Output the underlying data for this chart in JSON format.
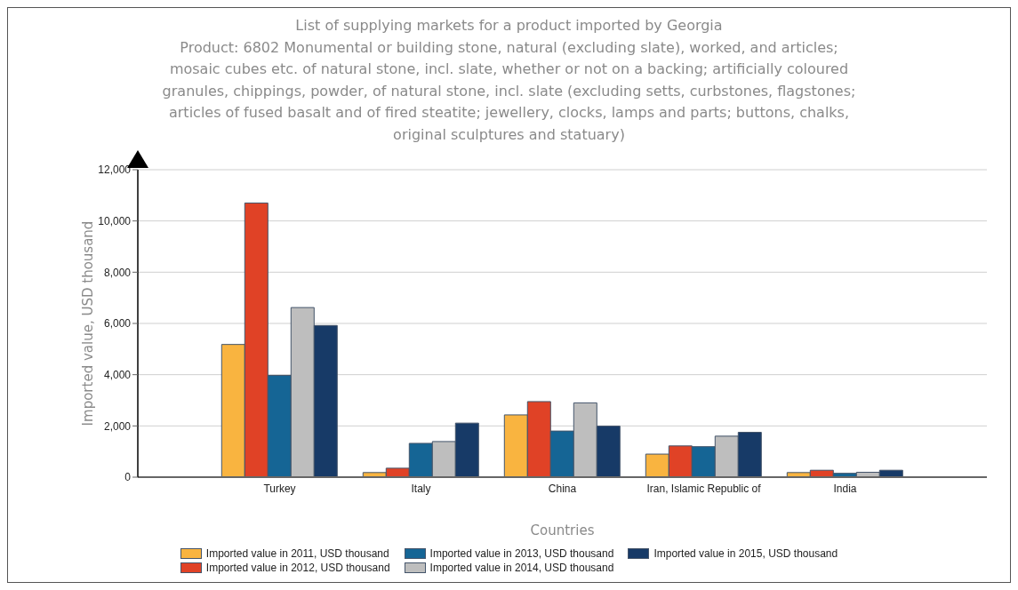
{
  "chart_data": {
    "type": "bar",
    "title": "List of supplying markets for a product imported by Georgia",
    "subtitle": "Product: 6802 Monumental or building stone, natural (excluding slate), worked, and articles; mosaic cubes etc. of natural stone, incl. slate, whether or not on a backing; artificially coloured granules, chippings, powder, of natural stone, incl. slate (excluding setts, curbstones, flagstones; articles of fused basalt and of fired steatite; jewellery, clocks, lamps and parts; buttons, chalks, original sculptures and statuary)",
    "xlabel": "Countries",
    "ylabel": "Imported value, USD thousand",
    "categories": [
      "Turkey",
      "Italy",
      "China",
      "Iran, Islamic Republic of",
      "India"
    ],
    "series": [
      {
        "name": "Imported value in 2011, USD thousand",
        "color": "#f9b440",
        "values": [
          5180,
          180,
          2430,
          900,
          180
        ]
      },
      {
        "name": "Imported value in 2012, USD thousand",
        "color": "#e04226",
        "values": [
          10700,
          350,
          2950,
          1220,
          270
        ]
      },
      {
        "name": "Imported value in 2013, USD thousand",
        "color": "#156595",
        "values": [
          3970,
          1320,
          1800,
          1190,
          150
        ]
      },
      {
        "name": "Imported value in 2014, USD thousand",
        "color": "#bebebe",
        "values": [
          6620,
          1390,
          2900,
          1600,
          190
        ]
      },
      {
        "name": "Imported value in 2015, USD thousand",
        "color": "#173a67",
        "values": [
          5920,
          2110,
          1990,
          1750,
          270
        ]
      }
    ],
    "ylim": [
      0,
      12000
    ],
    "yticks": [
      0,
      {
        "value": 2000,
        "label": "2,000"
      },
      {
        "value": 4000,
        "label": "4,000"
      },
      {
        "value": 6000,
        "label": "6,000"
      },
      {
        "value": 8000,
        "label": "8,000"
      },
      {
        "value": 10000,
        "label": "10,000"
      },
      {
        "value": 12000,
        "label": "12,000"
      }
    ],
    "grid": "y",
    "legend": "bottom"
  }
}
